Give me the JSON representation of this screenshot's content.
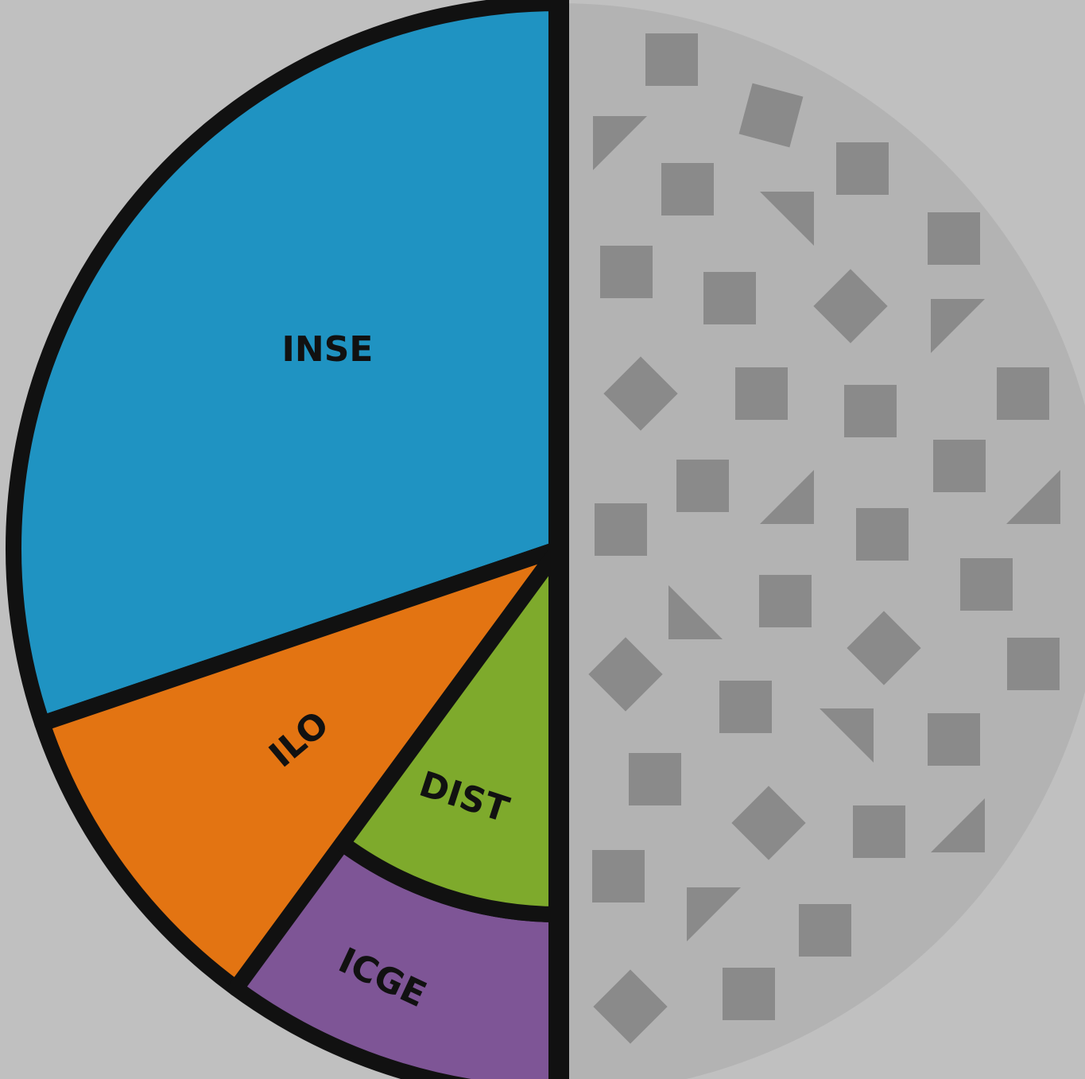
{
  "diagram": {
    "segments": [
      {
        "label": "INSE"
      },
      {
        "label": "ILO"
      },
      {
        "label": "DIST"
      },
      {
        "label": "ICGE"
      }
    ]
  }
}
